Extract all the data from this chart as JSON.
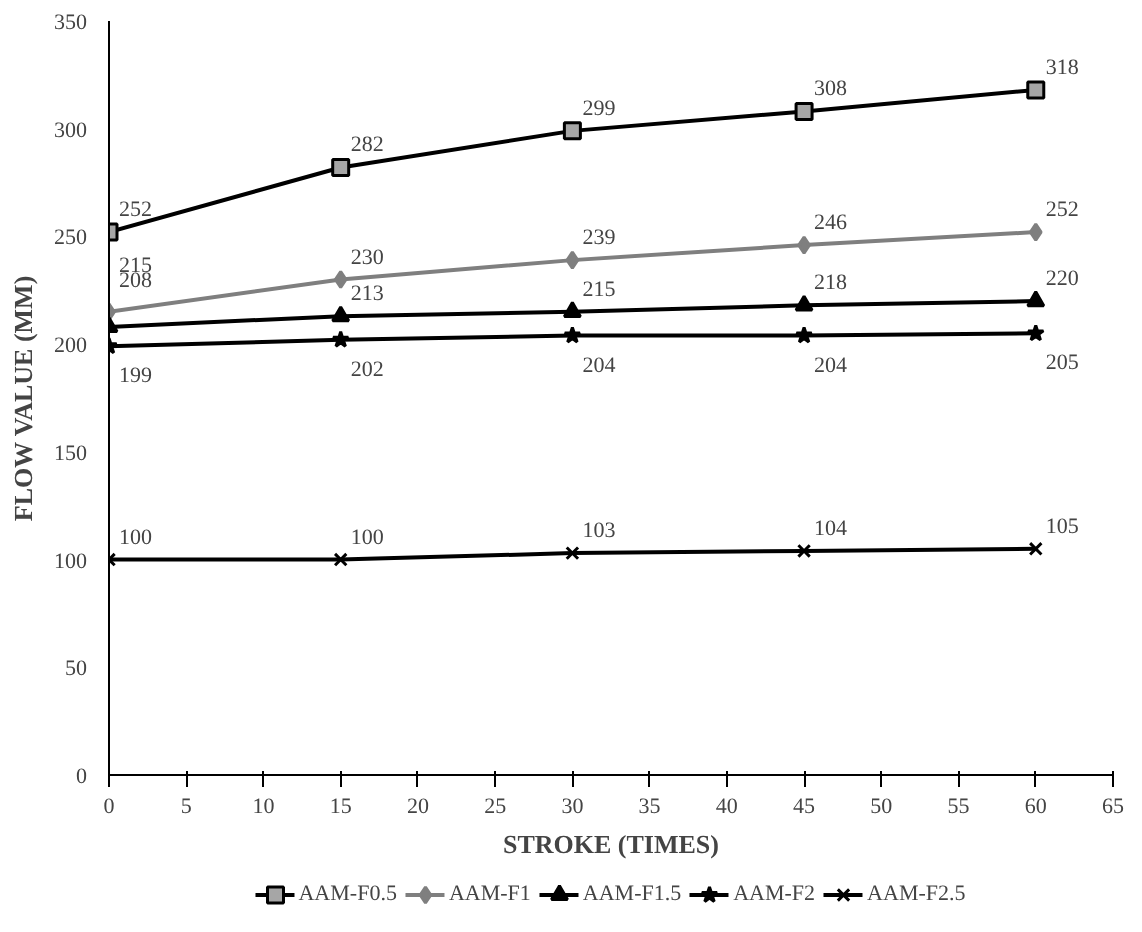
{
  "chart_data": {
    "type": "line",
    "xlabel": "STROKE (TIMES)",
    "ylabel": "FLOW VALUE (MM)",
    "x": [
      0,
      15,
      30,
      45,
      60
    ],
    "xlim": [
      0,
      65
    ],
    "xticks": [
      0,
      5,
      10,
      15,
      20,
      25,
      30,
      35,
      40,
      45,
      50,
      55,
      60,
      65
    ],
    "ylim": [
      0,
      350
    ],
    "yticks": [
      0,
      50,
      100,
      150,
      200,
      250,
      300,
      350
    ],
    "grid": false,
    "legend": "bottom",
    "data_labels": true,
    "line_style": "solid",
    "series": [
      {
        "name": "AAM-F0.5",
        "color": "#000000",
        "marker": "square",
        "values": [
          252,
          282,
          299,
          308,
          318
        ]
      },
      {
        "name": "AAM-F1",
        "color": "#7f7f7f",
        "marker": "diamond",
        "values": [
          215,
          230,
          239,
          246,
          252
        ]
      },
      {
        "name": "AAM-F1.5",
        "color": "#000000",
        "marker": "triangle",
        "values": [
          208,
          213,
          215,
          218,
          220
        ]
      },
      {
        "name": "AAM-F2",
        "color": "#000000",
        "marker": "star",
        "values": [
          199,
          202,
          204,
          204,
          205
        ]
      },
      {
        "name": "AAM-F2.5",
        "color": "#000000",
        "marker": "cross",
        "values": [
          100,
          100,
          103,
          104,
          105
        ]
      }
    ]
  }
}
